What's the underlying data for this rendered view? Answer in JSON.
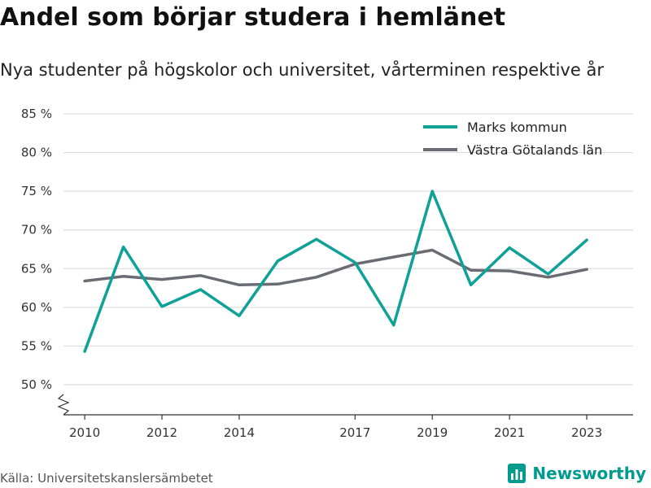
{
  "title": "Andel som börjar studera i hemlänet",
  "subtitle": "Nya studenter på högskolor och universitet, vårterminen respektive år",
  "source": "Källa: Universitetskanslersämbetet",
  "brand": {
    "name": "Newsworthy",
    "icon": "newsworthy-logo-icon",
    "color": "#009A8E"
  },
  "colors": {
    "grid": "#dddddd",
    "axis": "#333333"
  },
  "chart_data": {
    "type": "line",
    "x": [
      2010,
      2011,
      2012,
      2013,
      2014,
      2015,
      2016,
      2017,
      2018,
      2019,
      2020,
      2021,
      2022,
      2023
    ],
    "x_tick_labels": [
      "2010",
      "2012",
      "2014",
      "2017",
      "2019",
      "2021",
      "2023"
    ],
    "y_tick_labels": [
      "50 %",
      "55 %",
      "60 %",
      "65 %",
      "70 %",
      "75 %",
      "80 %",
      "85 %"
    ],
    "ylim": [
      50,
      85
    ],
    "y_axis_broken": true,
    "grid": true,
    "legend_position": "top-right",
    "series": [
      {
        "name": "Marks kommun",
        "color": "#0FA197",
        "values": [
          54.3,
          67.8,
          60.1,
          62.3,
          58.9,
          66.0,
          68.8,
          65.8,
          57.7,
          75.0,
          62.9,
          67.7,
          64.3,
          68.7
        ]
      },
      {
        "name": "Västra Götalands län",
        "color": "#6B6B73",
        "values": [
          63.4,
          64.0,
          63.6,
          64.1,
          62.9,
          63.0,
          63.9,
          65.6,
          66.5,
          67.4,
          64.8,
          64.7,
          63.9,
          64.9
        ]
      }
    ]
  }
}
